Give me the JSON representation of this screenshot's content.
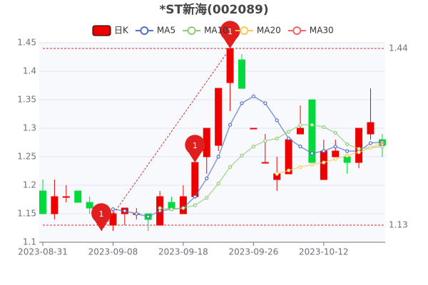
{
  "chart_data": {
    "type": "candlestick",
    "title": "*ST新海(002089)",
    "categories": [
      "2023-08-31",
      null,
      null,
      null,
      null,
      null,
      "2023-09-08",
      null,
      null,
      null,
      null,
      null,
      "2023-09-18",
      null,
      null,
      null,
      null,
      null,
      "2023-09-26",
      null,
      null,
      null,
      null,
      null,
      "2023-10-12",
      null,
      null,
      null,
      null,
      null
    ],
    "ylim": [
      1.1,
      1.45
    ],
    "yticks": [
      1.1,
      1.15,
      1.2,
      1.25,
      1.3,
      1.35,
      1.4,
      1.45
    ],
    "grid": true,
    "series": [
      {
        "name": "日K",
        "type": "candlestick",
        "up_color": "#ec0000",
        "down_color": "#00da3c",
        "open": [
          1.19,
          1.15,
          1.18,
          1.19,
          1.17,
          1.16,
          1.13,
          1.15,
          1.15,
          1.15,
          1.13,
          1.17,
          1.15,
          1.18,
          1.25,
          1.27,
          1.38,
          1.42,
          1.3,
          1.24,
          1.21,
          1.22,
          1.29,
          1.35,
          1.21,
          1.25,
          1.25,
          1.24,
          1.29,
          1.28
        ],
        "close": [
          1.15,
          1.18,
          1.18,
          1.17,
          1.16,
          1.15,
          1.15,
          1.16,
          1.15,
          1.14,
          1.18,
          1.16,
          1.18,
          1.24,
          1.3,
          1.37,
          1.44,
          1.37,
          1.3,
          1.24,
          1.22,
          1.28,
          1.3,
          1.24,
          1.26,
          1.26,
          1.24,
          1.3,
          1.31,
          1.27
        ],
        "low": [
          1.15,
          1.14,
          1.17,
          1.17,
          1.15,
          1.14,
          1.12,
          1.13,
          1.14,
          1.12,
          1.13,
          1.16,
          1.15,
          1.18,
          1.22,
          1.26,
          1.33,
          1.37,
          1.3,
          1.24,
          1.19,
          1.22,
          1.29,
          1.24,
          1.21,
          1.25,
          1.22,
          1.23,
          1.28,
          1.25
        ],
        "high": [
          1.21,
          1.21,
          1.2,
          1.19,
          1.18,
          1.16,
          1.16,
          1.16,
          1.16,
          1.15,
          1.19,
          1.18,
          1.2,
          1.24,
          1.3,
          1.37,
          1.44,
          1.43,
          1.3,
          1.29,
          1.25,
          1.28,
          1.34,
          1.35,
          1.28,
          1.28,
          1.25,
          1.3,
          1.37,
          1.29
        ]
      },
      {
        "name": "MA5",
        "type": "line",
        "color": "#5470c6",
        "values": [
          null,
          null,
          null,
          null,
          null,
          null,
          1.158,
          1.155,
          1.15,
          1.145,
          1.155,
          1.158,
          1.16,
          1.18,
          1.212,
          1.25,
          1.306,
          1.344,
          1.356,
          1.344,
          1.314,
          1.282,
          1.268,
          1.256,
          1.26,
          1.268,
          1.26,
          1.26,
          1.274,
          1.276
        ]
      },
      {
        "name": "MA10",
        "type": "line",
        "color": "#91cc75",
        "values": [
          null,
          null,
          null,
          null,
          null,
          null,
          null,
          null,
          null,
          null,
          1.16,
          1.158,
          1.16,
          1.165,
          1.178,
          1.203,
          1.232,
          1.252,
          1.268,
          1.278,
          1.282,
          1.294,
          1.306,
          1.306,
          1.302,
          1.292,
          1.272,
          1.264,
          1.266,
          1.268
        ]
      },
      {
        "name": "MA20",
        "type": "line",
        "color": "#fac858",
        "values": [
          null,
          null,
          null,
          null,
          null,
          null,
          null,
          null,
          null,
          null,
          null,
          null,
          null,
          null,
          null,
          null,
          null,
          null,
          null,
          null,
          1.22,
          1.226,
          1.232,
          1.236,
          1.24,
          1.246,
          1.252,
          1.258,
          1.266,
          1.274
        ]
      },
      {
        "name": "MA30",
        "type": "line",
        "color": "#ee6666",
        "values": [
          null,
          null,
          null,
          null,
          null,
          null,
          null,
          null,
          null,
          null,
          null,
          null,
          null,
          null,
          null,
          null,
          null,
          null,
          null,
          null,
          null,
          null,
          null,
          null,
          null,
          null,
          null,
          null,
          null,
          1.272
        ]
      }
    ],
    "markers": [
      {
        "index": 5,
        "value": 1.12,
        "label": "1"
      },
      {
        "index": 13,
        "value": 1.24,
        "label": "1"
      },
      {
        "index": 16,
        "value": 1.44,
        "label": "1"
      }
    ],
    "mark_lines": [
      {
        "value": 1.44,
        "label": "1.44"
      },
      {
        "value": 1.13,
        "label": "1.13"
      }
    ]
  }
}
